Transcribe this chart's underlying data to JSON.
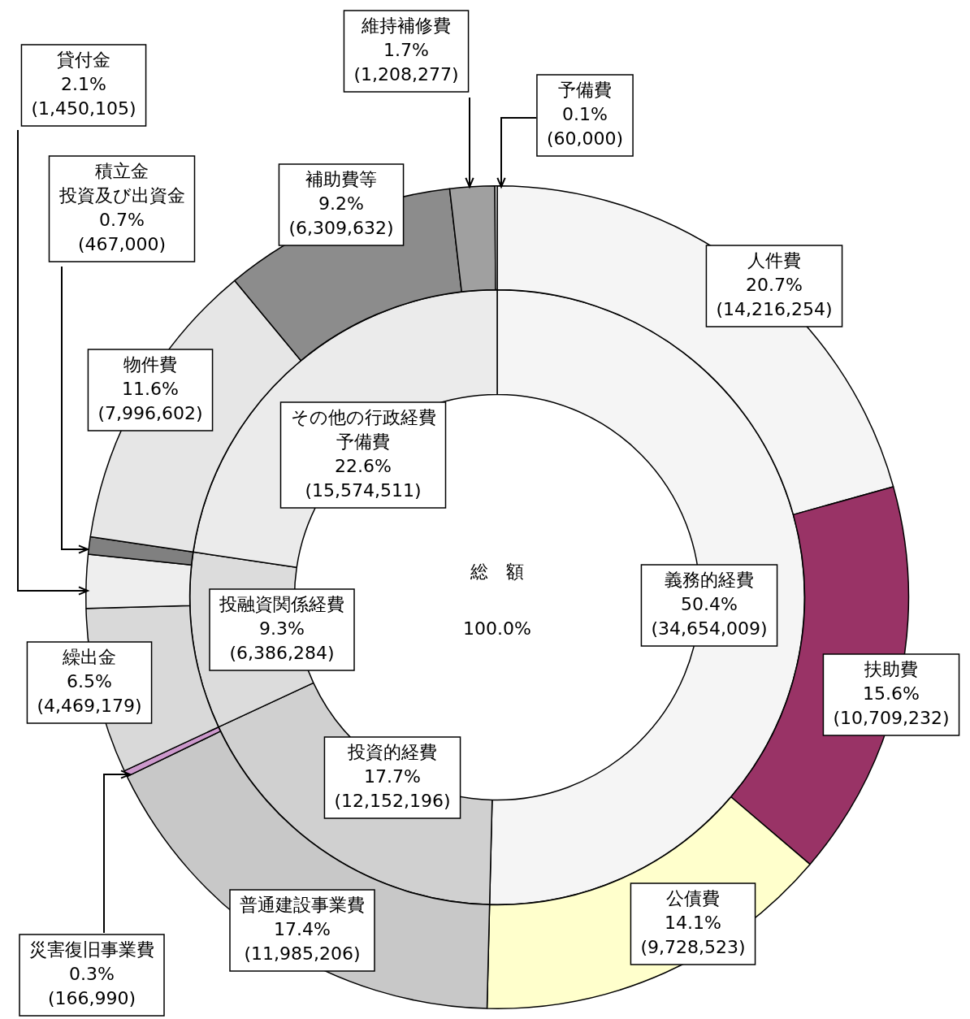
{
  "chart_data": [
    {
      "type": "donut",
      "legend": false,
      "categories": [
        "人件費",
        "扶助費",
        "公債費",
        "普通建設事業費",
        "災害復旧事業費",
        "繰出金",
        "貸付金",
        "積立金投資及び出資金",
        "物件費",
        "補助費等",
        "維持補修費",
        "予備費"
      ],
      "values": [
        14216254,
        10709232,
        9728523,
        11985206,
        166990,
        4469179,
        1450105,
        467000,
        7996602,
        6309632,
        1208277,
        60000
      ],
      "colors": [
        "#f5f5f5",
        "#993366",
        "#ffffcc",
        "#c8c8c8",
        "#cc99cc",
        "#d9d9d9",
        "#eeeeee",
        "#808080",
        "#e6e6e6",
        "#8c8c8c",
        "#a0a0a0",
        "#ffffff"
      ],
      "value_labels": [
        "20.7%\n(14,216,254)",
        "15.6%\n(10,709,232)",
        "14.1%\n(9,728,523)",
        "17.4%\n(11,985,206)",
        "0.3%\n(166,990)",
        "6.5%\n(4,469,179)",
        "2.1%\n(1,450,105)",
        "0.7%\n(467,000)",
        "11.6%\n(7,996,602)",
        "9.2%\n(6,309,632)",
        "1.7%\n(1,208,277)",
        "0.1%\n(60,000)"
      ]
    },
    {
      "type": "donut",
      "legend": false,
      "annotations": [
        "総　額",
        "100.0%"
      ],
      "categories": [
        "義務的経費",
        "投資的経費",
        "投融資関係経費",
        "その他の行政経費予備費"
      ],
      "values": [
        34654009,
        12152196,
        6386284,
        15574511
      ],
      "colors": [
        "#f5f5f5",
        "#d0d0d0",
        "#dcdcdc",
        "#ebebeb"
      ],
      "value_labels": [
        "50.4%\n(34,654,009)",
        "17.7%\n(12,152,196)",
        "9.3%\n(6,386,284)",
        "22.6%\n(15,574,511)"
      ]
    }
  ]
}
